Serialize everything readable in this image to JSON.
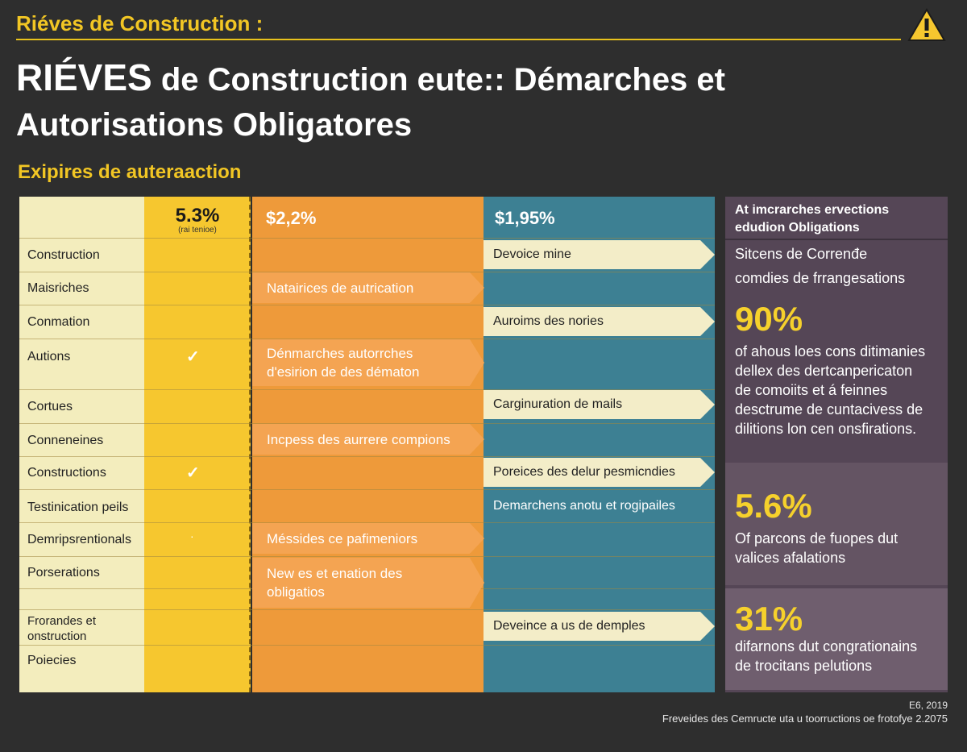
{
  "header": {
    "top_title": "Riéves de Construction :",
    "title_line1_big": "RIÉVES",
    "title_line1_rest": " de Construction eute:: Démarches et",
    "title_line2": "Autorisations Obligatores",
    "section_title": "Exipires de auteraaction",
    "warning_icon": "warning-triangle-icon"
  },
  "table": {
    "headers": {
      "yellow_value": "5.3%",
      "yellow_sub": "(rai tenioe)",
      "orange_value": "$2,2%",
      "teal_value": "$1,95%"
    },
    "rows": [
      "Construction",
      "Maisriches",
      "Conmation",
      "Autions",
      "Cortues",
      "Conneneines",
      "Constructions",
      "Testinication peils",
      "Demripsrentionals",
      "Porserations",
      "",
      "Frorandes et\nonstruction",
      "Poiecies"
    ],
    "checks": [
      "✓",
      "✓",
      "·"
    ],
    "orange_arrows": [
      "Natairices de autrication",
      "Dénmarches autorrches\nd'esirion de des dématon",
      "Incpess des aurrere compions",
      "Méssides ce pafimeniors",
      "New es et enation des\nobligatios"
    ],
    "teal_arrows": [
      "Devoice mine",
      "Auroims des nories",
      "Carginuration de mails",
      "Poreices des delur pesmicndies",
      "Deveince a us de demples"
    ],
    "teal_plain": "Demarchens anotu et rogipailes"
  },
  "panel": {
    "head": "At imcrarches ervections\nedudion Obligations",
    "sub": "Sitcens de Correnđe\ncomdies de frrangesations",
    "stats": [
      {
        "value": "90%",
        "text": "of ahous loes cons ditimanies\ndellex des dertcanpericaton\nde comoiits et á feinnes\ndesctrume de cuntacivess de\ndilitions lon cen onsfirations."
      },
      {
        "value": "5.6%",
        "text": "Of parcons de fuopes dut\nvalices afalations"
      },
      {
        "value": "31%",
        "text": "difarnons dut congrationains\nde trocitans pelutions"
      }
    ]
  },
  "footer": {
    "line1": "E6, 2019",
    "line2": "Freveides des Cemructe uta u toorructions oe frotofye 2.2075"
  },
  "colors": {
    "background": "#2e2e2e",
    "accent_yellow": "#f2c624",
    "beige": "#f3edbd",
    "yellow": "#f6c72f",
    "orange": "#ee9a3a",
    "teal": "#3d8093",
    "purple": "#554656"
  }
}
